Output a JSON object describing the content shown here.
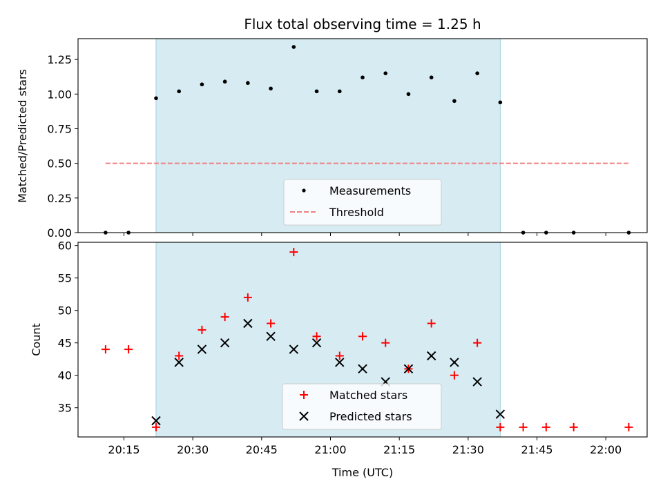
{
  "chart_data": [
    {
      "type": "scatter",
      "title": "Flux total observing time = 1.25 h",
      "xlabel": "",
      "ylabel": "Matched/Predicted stars",
      "ylim": [
        0,
        1.4
      ],
      "yticks": [
        "0.00",
        "0.25",
        "0.50",
        "0.75",
        "1.00",
        "1.25"
      ],
      "xlim_minutes_utc": [
        "20:05",
        "22:09"
      ],
      "shaded_interval": [
        "20:22",
        "21:37"
      ],
      "shade_color": "#add8e6",
      "series": [
        {
          "name": "Measurements",
          "color": "#000000",
          "marker": "dot",
          "x": [
            "20:11",
            "20:16",
            "20:22",
            "20:27",
            "20:32",
            "20:37",
            "20:42",
            "20:47",
            "20:52",
            "20:57",
            "21:02",
            "21:07",
            "21:12",
            "21:17",
            "21:22",
            "21:27",
            "21:32",
            "21:37",
            "21:42",
            "21:47",
            "21:53",
            "22:05"
          ],
          "values": [
            0,
            0,
            0.97,
            1.02,
            1.07,
            1.09,
            1.08,
            1.04,
            1.34,
            1.02,
            1.02,
            1.12,
            1.15,
            1.0,
            1.12,
            0.95,
            1.15,
            0.94,
            0,
            0,
            0,
            0
          ]
        },
        {
          "name": "Threshold",
          "color": "#f08080",
          "marker": "dashed-line",
          "x": [
            "20:11",
            "22:05"
          ],
          "values": [
            0.5,
            0.5
          ]
        }
      ],
      "legend": "lower-center"
    },
    {
      "type": "scatter",
      "title": "",
      "xlabel": "Time (UTC)",
      "ylabel": "Count",
      "ylim": [
        30.5,
        60.5
      ],
      "yticks": [
        "35",
        "40",
        "45",
        "50",
        "55",
        "60"
      ],
      "xticks": [
        "20:15",
        "20:30",
        "20:45",
        "21:00",
        "21:15",
        "21:30",
        "21:45",
        "22:00"
      ],
      "shaded_interval": [
        "20:22",
        "21:37"
      ],
      "shade_color": "#add8e6",
      "series": [
        {
          "name": "Matched stars",
          "color": "#ff0000",
          "marker": "plus",
          "x": [
            "20:11",
            "20:16",
            "20:22",
            "20:27",
            "20:32",
            "20:37",
            "20:42",
            "20:47",
            "20:52",
            "20:57",
            "21:02",
            "21:07",
            "21:12",
            "21:17",
            "21:22",
            "21:27",
            "21:32",
            "21:37",
            "21:42",
            "21:47",
            "21:53",
            "22:05"
          ],
          "values": [
            44,
            44,
            32,
            43,
            47,
            49,
            52,
            48,
            59,
            46,
            43,
            46,
            45,
            41,
            48,
            40,
            45,
            32,
            32,
            32,
            32,
            32
          ]
        },
        {
          "name": "Predicted stars",
          "color": "#000000",
          "marker": "x",
          "x": [
            "20:22",
            "20:27",
            "20:32",
            "20:37",
            "20:42",
            "20:47",
            "20:52",
            "20:57",
            "21:02",
            "21:07",
            "21:12",
            "21:17",
            "21:22",
            "21:27",
            "21:32",
            "21:37"
          ],
          "values": [
            33,
            42,
            44,
            45,
            48,
            46,
            44,
            45,
            42,
            41,
            39,
            41,
            43,
            42,
            39,
            34
          ]
        }
      ],
      "legend": "lower-center"
    }
  ]
}
